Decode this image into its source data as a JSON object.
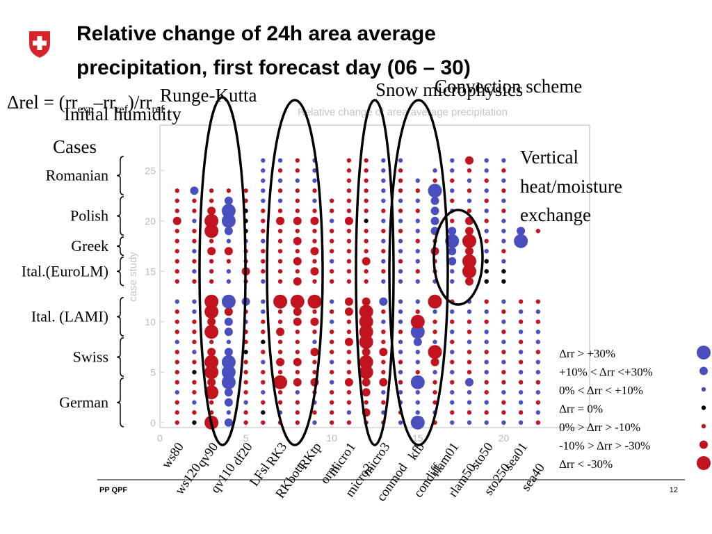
{
  "slide": {
    "title_lines": [
      "Relative change of 24h area average",
      "precipitation, first forecast day (06 – 30)"
    ],
    "formula": [
      "Δrel = (rr",
      "exp",
      "–rr",
      "ref",
      ")/rr",
      "ref"
    ],
    "annotations": {
      "runge_kutta": "Runge-Kutta",
      "initial_humidity": "Initial humidity",
      "snow": "Snow microphysics",
      "convection": "Convection scheme",
      "vertical": [
        "Vertical",
        "heat/moisture",
        "exchange"
      ]
    },
    "cases_heading": "Cases",
    "cases": [
      {
        "label": "Romanian",
        "rows": [
          23,
          26
        ]
      },
      {
        "label": "Polish",
        "rows": [
          19,
          22
        ]
      },
      {
        "label": "Greek",
        "rows": [
          17,
          18
        ]
      },
      {
        "label": "Ital.(EuroLM)",
        "rows": [
          14,
          16
        ]
      },
      {
        "label": "Ital. (LAMI)",
        "rows": [
          9,
          12
        ]
      },
      {
        "label": "Swiss",
        "rows": [
          5,
          8
        ]
      },
      {
        "label": "German",
        "rows": [
          0,
          4
        ]
      }
    ],
    "footer": {
      "left": "PP QPF",
      "page": "12"
    }
  },
  "chart_data": {
    "type": "dot_matrix",
    "title": "Relative change of area average precipitation",
    "ylabel": "case study",
    "xlim": [
      0,
      25
    ],
    "ylim": [
      -0.5,
      29.5
    ],
    "xticks": [
      0,
      5,
      10,
      15,
      20
    ],
    "yticks": [
      0,
      5,
      10,
      15,
      20,
      25
    ],
    "rows": [
      0,
      1,
      2,
      3,
      4,
      5,
      6,
      7,
      8,
      9,
      10,
      11,
      12,
      13,
      14,
      15,
      16,
      17,
      18,
      19,
      20,
      21,
      22,
      23,
      24,
      25,
      26
    ],
    "positive_color": "#4a4fc0",
    "negative_color": "#c2141e",
    "zero_color": "#000000",
    "experiments": [
      {
        "name": "ws80",
        "x": 1,
        "classes": [
          -1,
          -1,
          -1,
          1,
          -1,
          -1,
          -1,
          -1,
          1,
          -1,
          -1,
          -1,
          1,
          null,
          -1,
          -1,
          -1,
          -1,
          -1,
          -1,
          -2,
          -1,
          -1,
          -1,
          null,
          null,
          null
        ]
      },
      {
        "name": "ws120",
        "x": 2,
        "classes": [
          0,
          -1,
          1,
          -1,
          -1,
          0,
          -1,
          1,
          -1,
          -1,
          -1,
          1,
          1,
          null,
          -1,
          1,
          -1,
          1,
          -1,
          -1,
          1,
          -1,
          -1,
          2,
          null,
          null,
          null
        ]
      },
      {
        "name": "qv90",
        "x": 3,
        "classes": [
          -3,
          -1,
          -1,
          -3,
          -2,
          -3,
          -3,
          -2,
          -1,
          -3,
          -2,
          -3,
          -3,
          null,
          -1,
          -1,
          -1,
          -2,
          -1,
          -3,
          -3,
          -2,
          -1,
          -1,
          null,
          null,
          null
        ]
      },
      {
        "name": "qv110",
        "x": 4,
        "classes": [
          2,
          1,
          2,
          2,
          3,
          3,
          3,
          2,
          1,
          2,
          2,
          -2,
          3,
          null,
          1,
          1,
          -1,
          -2,
          1,
          2,
          3,
          3,
          2,
          -1,
          null,
          null,
          null
        ]
      },
      {
        "name": "df20",
        "x": 5,
        "classes": [
          -1,
          -1,
          1,
          -1,
          -1,
          -1,
          -1,
          0,
          -1,
          -1,
          1,
          -1,
          2,
          null,
          -1,
          -2,
          -1,
          -1,
          1,
          0,
          0,
          0,
          -1,
          -1,
          null,
          null,
          null
        ]
      },
      {
        "name": "LFsl",
        "x": 6,
        "classes": [
          -1,
          0,
          -1,
          1,
          -1,
          -1,
          1,
          -1,
          0,
          -1,
          -1,
          1,
          1,
          null,
          1,
          -1,
          -1,
          -1,
          1,
          -1,
          -1,
          -1,
          1,
          1,
          1,
          1,
          1
        ]
      },
      {
        "name": "RK3",
        "x": 7,
        "classes": [
          -1,
          1,
          -1,
          -1,
          -3,
          -1,
          -2,
          -1,
          -1,
          -2,
          -1,
          -1,
          -3,
          null,
          -1,
          -1,
          -1,
          -1,
          -1,
          -1,
          -2,
          -1,
          1,
          -1,
          1,
          -1,
          1
        ]
      },
      {
        "name": "RKbott",
        "x": 8,
        "classes": [
          -1,
          -1,
          -1,
          1,
          -2,
          -1,
          -2,
          -1,
          -1,
          -1,
          -2,
          -2,
          -3,
          null,
          -2,
          -1,
          -2,
          -1,
          -2,
          -1,
          -2,
          -1,
          -1,
          -1,
          1,
          -1,
          -1
        ]
      },
      {
        "name": "RKtp",
        "x": 9,
        "classes": [
          1,
          -1,
          1,
          -1,
          -2,
          -1,
          -1,
          -2,
          1,
          -1,
          -2,
          -1,
          -3,
          null,
          -1,
          -2,
          -1,
          -2,
          -1,
          -1,
          -2,
          -1,
          1,
          -1,
          1,
          1,
          1
        ]
      },
      {
        "name": "ornt",
        "x": 10,
        "classes": [
          -1,
          -1,
          -1,
          -1,
          1,
          -1,
          1,
          -1,
          -1,
          -1,
          1,
          -1,
          1,
          null,
          -1,
          -1,
          1,
          -1,
          -1,
          -1,
          1,
          -1,
          -1,
          null,
          null,
          null,
          null
        ]
      },
      {
        "name": "micro1",
        "x": 11,
        "classes": [
          -1,
          1,
          -1,
          -1,
          -2,
          -1,
          -1,
          -1,
          -2,
          -1,
          -1,
          -2,
          -2,
          null,
          -1,
          -1,
          -1,
          -1,
          -1,
          -1,
          -2,
          -1,
          -1,
          -1,
          -1,
          -1,
          -1
        ]
      },
      {
        "name": "micro2",
        "x": 12,
        "classes": [
          -1,
          -2,
          -1,
          -2,
          -2,
          -3,
          -3,
          -2,
          -3,
          -3,
          -3,
          -3,
          -2,
          null,
          -1,
          -1,
          -2,
          -1,
          -1,
          -1,
          0,
          -1,
          -1,
          -1,
          -1,
          -1,
          -1
        ]
      },
      {
        "name": "micro3",
        "x": 13,
        "classes": [
          -1,
          1,
          -1,
          1,
          -2,
          -1,
          -1,
          -2,
          -1,
          -1,
          1,
          -1,
          2,
          null,
          1,
          -1,
          1,
          -1,
          1,
          -1,
          1,
          -1,
          1,
          1,
          1,
          1,
          1
        ]
      },
      {
        "name": "conmod",
        "x": 14,
        "classes": [
          1,
          -1,
          1,
          1,
          -1,
          1,
          -1,
          1,
          1,
          -1,
          1,
          1,
          1,
          null,
          1,
          1,
          -1,
          1,
          1,
          -1,
          1,
          -1,
          1,
          -1,
          -1,
          -1,
          1
        ]
      },
      {
        "name": "kfb",
        "x": 15,
        "classes": [
          3,
          1,
          1,
          1,
          3,
          -1,
          1,
          1,
          2,
          3,
          -3,
          -1,
          1,
          null,
          1,
          -1,
          1,
          1,
          -1,
          1,
          1,
          -1,
          1,
          -1,
          1,
          null,
          null
        ]
      },
      {
        "name": "condiff",
        "x": 16,
        "classes": [
          -1,
          1,
          -1,
          -1,
          -1,
          1,
          -2,
          -3,
          1,
          -1,
          -1,
          1,
          -3,
          null,
          1,
          -1,
          -1,
          -2,
          -1,
          2,
          2,
          2,
          2,
          3,
          -1,
          1,
          null
        ]
      },
      {
        "name": "rlam01",
        "x": 17,
        "classes": [
          1,
          -1,
          1,
          1,
          -1,
          1,
          -1,
          1,
          -1,
          1,
          -1,
          1,
          -1,
          null,
          1,
          1,
          2,
          2,
          3,
          2,
          -1,
          1,
          -1,
          1,
          -1,
          1,
          1
        ]
      },
      {
        "name": "rlam50",
        "x": 18,
        "classes": [
          1,
          -1,
          1,
          1,
          2,
          -1,
          -1,
          -1,
          1,
          -1,
          -1,
          1,
          1,
          null,
          -2,
          -3,
          -3,
          -2,
          -3,
          -2,
          -2,
          -1,
          1,
          -1,
          1,
          -1,
          -2
        ]
      },
      {
        "name": "sto50",
        "x": 19,
        "classes": [
          1,
          -1,
          1,
          -1,
          -1,
          1,
          1,
          -1,
          1,
          1,
          -1,
          1,
          -1,
          null,
          0,
          0,
          0,
          1,
          -1,
          1,
          -1,
          1,
          -1,
          1,
          -1,
          1,
          1
        ]
      },
      {
        "name": "sto250",
        "x": 20,
        "classes": [
          1,
          -1,
          -1,
          1,
          -1,
          -1,
          1,
          -1,
          1,
          -1,
          1,
          -1,
          1,
          null,
          0,
          0,
          1,
          -1,
          1,
          1,
          1,
          -1,
          1,
          -1,
          1,
          -1,
          1
        ]
      },
      {
        "name": "sea01",
        "x": 21,
        "classes": [
          1,
          -1,
          1,
          1,
          -1,
          1,
          -1,
          1,
          -1,
          1,
          -1,
          1,
          -1,
          null,
          null,
          null,
          null,
          null,
          3,
          2,
          null,
          null,
          null,
          null,
          null,
          null,
          null
        ]
      },
      {
        "name": "sea40",
        "x": 22,
        "classes": [
          -1,
          1,
          -1,
          1,
          -1,
          1,
          1,
          -1,
          1,
          1,
          -1,
          1,
          -1,
          null,
          null,
          null,
          null,
          null,
          null,
          -1,
          null,
          null,
          null,
          null,
          null,
          null,
          null
        ]
      }
    ],
    "legend": [
      {
        "label": "Δrr > +30%",
        "class": 3
      },
      {
        "label": "+10% <  Δrr <+30%",
        "class": 2
      },
      {
        "label": "0% < Δrr < +10%",
        "class": 1
      },
      {
        "label": "Δrr = 0%",
        "class": 0
      },
      {
        "label": "0% > Δrr > -10%",
        "class": -1
      },
      {
        "label": "-10% > Δrr > -30%",
        "class": -2
      },
      {
        "label": "Δrr < -30%",
        "class": -3
      }
    ]
  }
}
